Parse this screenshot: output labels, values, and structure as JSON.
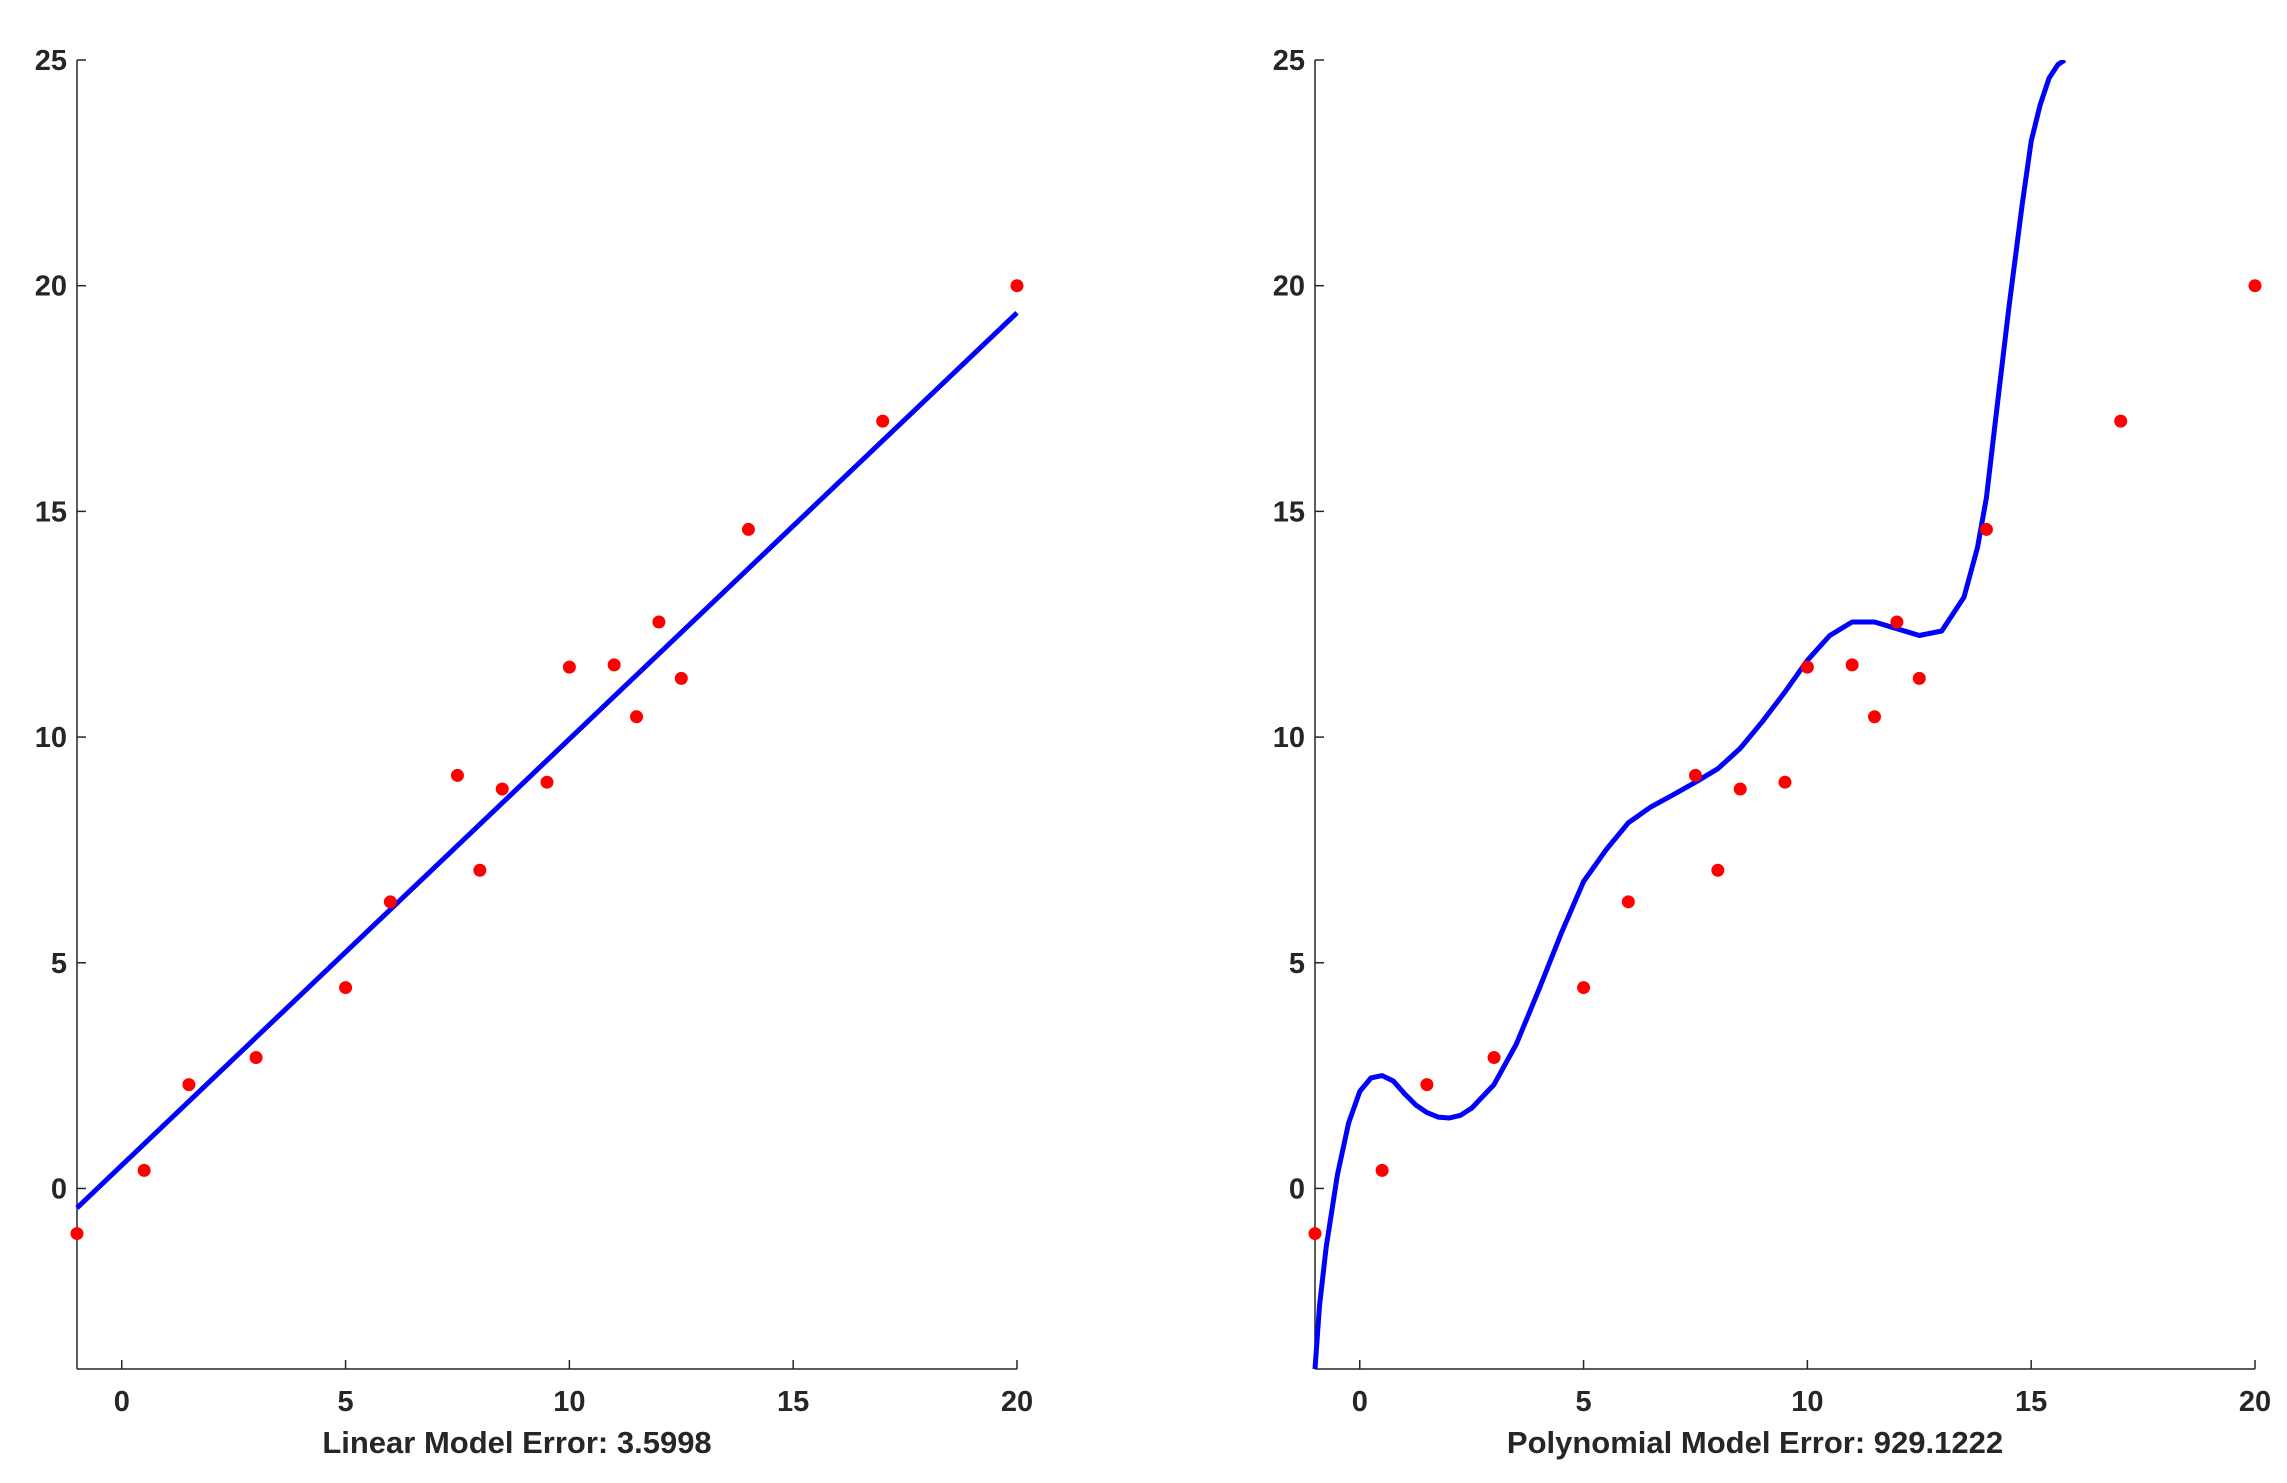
{
  "chart_data": [
    {
      "type": "scatter",
      "title": "",
      "xlabel": "Linear Model Error: 3.5998",
      "ylabel": "",
      "xlim": [
        -1,
        20
      ],
      "ylim": [
        -4,
        25
      ],
      "xticks": [
        "0",
        "5",
        "10",
        "15",
        "20"
      ],
      "yticks": [
        "0",
        "5",
        "10",
        "15",
        "20",
        "25"
      ],
      "grid": false,
      "legend": "none",
      "series": [
        {
          "kind": "points",
          "color": "#ff0000",
          "x": [
            -1,
            0.5,
            1.5,
            3,
            5,
            6,
            7.5,
            8,
            8.5,
            9.5,
            10,
            11,
            11.5,
            12,
            12.5,
            14,
            17,
            20
          ],
          "y": [
            -1,
            0.4,
            2.3,
            2.9,
            4.45,
            6.35,
            9.15,
            7.05,
            8.85,
            9,
            11.55,
            11.6,
            10.45,
            12.55,
            11.3,
            14.6,
            17,
            20
          ]
        },
        {
          "kind": "line",
          "color": "#0000ff",
          "x": [
            -1,
            20
          ],
          "y": [
            -0.43,
            19.4
          ]
        }
      ]
    },
    {
      "type": "scatter",
      "title": "",
      "xlabel": "Polynomial Model Error: 929.1222",
      "ylabel": "",
      "xlim": [
        -1,
        20
      ],
      "ylim": [
        -4,
        25
      ],
      "xticks": [
        "0",
        "5",
        "10",
        "15",
        "20"
      ],
      "yticks": [
        "0",
        "5",
        "10",
        "15",
        "20",
        "25"
      ],
      "grid": false,
      "legend": "none",
      "series": [
        {
          "kind": "points",
          "color": "#ff0000",
          "x": [
            -1,
            0.5,
            1.5,
            3,
            5,
            6,
            7.5,
            8,
            8.5,
            9.5,
            10,
            11,
            11.5,
            12,
            12.5,
            14,
            17,
            20
          ],
          "y": [
            -1,
            0.4,
            2.3,
            2.9,
            4.45,
            6.35,
            9.15,
            7.05,
            8.85,
            9,
            11.55,
            11.6,
            10.45,
            12.55,
            11.3,
            14.6,
            17,
            20
          ]
        },
        {
          "kind": "curve",
          "color": "#0000ff",
          "x": [
            -1,
            -0.9,
            -0.75,
            -0.5,
            -0.25,
            0,
            0.25,
            0.5,
            0.75,
            1,
            1.25,
            1.5,
            1.75,
            2,
            2.25,
            2.5,
            3,
            3.5,
            4,
            4.5,
            5,
            5.5,
            6,
            6.5,
            7,
            7.5,
            8,
            8.5,
            9,
            9.5,
            10,
            10.5,
            11,
            11.5,
            12,
            12.5,
            13,
            13.5,
            13.8,
            14,
            14.2,
            14.5,
            14.8,
            15,
            15.2,
            15.4,
            15.6,
            15.75
          ],
          "y": [
            -4,
            -2.6,
            -1.3,
            0.3,
            1.45,
            2.15,
            2.45,
            2.5,
            2.38,
            2.1,
            1.85,
            1.68,
            1.58,
            1.56,
            1.62,
            1.78,
            2.3,
            3.2,
            4.4,
            5.65,
            6.8,
            7.5,
            8.1,
            8.45,
            8.72,
            9.0,
            9.3,
            9.75,
            10.35,
            11.0,
            11.7,
            12.25,
            12.55,
            12.55,
            12.4,
            12.25,
            12.35,
            13.1,
            14.2,
            15.3,
            17.0,
            19.5,
            21.8,
            23.2,
            24.0,
            24.6,
            24.9,
            25
          ]
        }
      ]
    }
  ]
}
